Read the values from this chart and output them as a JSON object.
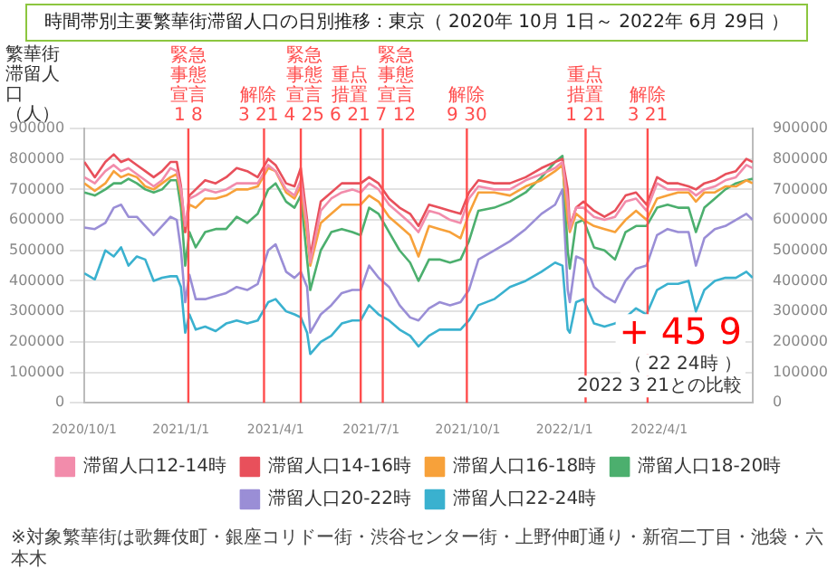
{
  "chart_data": {
    "type": "line",
    "title": "時間帯別主要繁華街滞留人口の日別推移：東京（ 2020年 10月 1日～ 2022年 6月 29日 ）",
    "ylabel": "繁華街滞留人口（人）",
    "x": [
      "2020-10-01",
      "2020-10-11",
      "2020-10-21",
      "2020-10-29",
      "2020-11-05",
      "2020-11-12",
      "2020-11-20",
      "2020-11-28",
      "2020-12-06",
      "2020-12-14",
      "2020-12-22",
      "2020-12-28",
      "2021-01-01",
      "2021-01-05",
      "2021-01-09",
      "2021-01-15",
      "2021-01-24",
      "2021-02-03",
      "2021-02-13",
      "2021-02-23",
      "2021-03-05",
      "2021-03-15",
      "2021-03-25",
      "2021-04-01",
      "2021-04-11",
      "2021-04-19",
      "2021-04-25",
      "2021-05-01",
      "2021-05-04",
      "2021-05-14",
      "2021-05-24",
      "2021-06-03",
      "2021-06-13",
      "2021-06-21",
      "2021-06-29",
      "2021-07-08",
      "2021-07-18",
      "2021-07-28",
      "2021-08-07",
      "2021-08-15",
      "2021-08-25",
      "2021-09-04",
      "2021-09-14",
      "2021-09-24",
      "2021-10-02",
      "2021-10-11",
      "2021-10-26",
      "2021-11-10",
      "2021-11-25",
      "2021-12-10",
      "2021-12-23",
      "2021-12-30",
      "2022-01-04",
      "2022-01-06",
      "2022-01-12",
      "2022-01-19",
      "2022-01-29",
      "2022-02-08",
      "2022-02-18",
      "2022-02-28",
      "2022-03-10",
      "2022-03-20",
      "2022-03-30",
      "2022-04-09",
      "2022-04-19",
      "2022-04-29",
      "2022-05-06",
      "2022-05-14",
      "2022-05-24",
      "2022-06-03",
      "2022-06-13",
      "2022-06-23",
      "2022-06-29"
    ],
    "series": [
      {
        "name": "滞留人口12-14時",
        "color": "#f28cab",
        "values": [
          740000,
          720000,
          760000,
          780000,
          760000,
          770000,
          750000,
          730000,
          710000,
          730000,
          770000,
          760000,
          700000,
          580000,
          670000,
          680000,
          700000,
          690000,
          700000,
          720000,
          720000,
          720000,
          780000,
          760000,
          700000,
          680000,
          730000,
          580000,
          460000,
          630000,
          670000,
          690000,
          700000,
          690000,
          720000,
          700000,
          650000,
          620000,
          590000,
          560000,
          630000,
          620000,
          600000,
          590000,
          670000,
          710000,
          700000,
          700000,
          730000,
          750000,
          770000,
          790000,
          660000,
          570000,
          640000,
          640000,
          610000,
          600000,
          610000,
          660000,
          670000,
          630000,
          720000,
          700000,
          700000,
          700000,
          680000,
          700000,
          710000,
          730000,
          740000,
          780000,
          770000
        ]
      },
      {
        "name": "滞留人口14-16時",
        "color": "#e8505b",
        "values": [
          790000,
          740000,
          790000,
          815000,
          790000,
          800000,
          780000,
          760000,
          740000,
          760000,
          790000,
          790000,
          710000,
          560000,
          680000,
          700000,
          730000,
          720000,
          740000,
          770000,
          760000,
          740000,
          800000,
          780000,
          720000,
          710000,
          770000,
          600000,
          480000,
          660000,
          690000,
          720000,
          720000,
          720000,
          740000,
          720000,
          670000,
          640000,
          620000,
          580000,
          650000,
          640000,
          630000,
          620000,
          690000,
          730000,
          720000,
          720000,
          740000,
          770000,
          790000,
          800000,
          700000,
          580000,
          640000,
          660000,
          630000,
          610000,
          630000,
          680000,
          690000,
          650000,
          740000,
          720000,
          720000,
          710000,
          700000,
          720000,
          730000,
          750000,
          760000,
          800000,
          790000
        ]
      },
      {
        "name": "滞留人口16-18時",
        "color": "#f7a13a",
        "values": [
          720000,
          695000,
          720000,
          760000,
          740000,
          750000,
          740000,
          710000,
          700000,
          720000,
          740000,
          750000,
          680000,
          560000,
          650000,
          640000,
          670000,
          670000,
          680000,
          700000,
          700000,
          710000,
          770000,
          760000,
          690000,
          670000,
          710000,
          550000,
          450000,
          590000,
          620000,
          650000,
          650000,
          650000,
          680000,
          660000,
          610000,
          580000,
          550000,
          480000,
          580000,
          570000,
          560000,
          540000,
          620000,
          690000,
          690000,
          680000,
          710000,
          730000,
          760000,
          780000,
          600000,
          560000,
          620000,
          600000,
          580000,
          570000,
          560000,
          600000,
          630000,
          600000,
          670000,
          680000,
          690000,
          690000,
          660000,
          690000,
          690000,
          710000,
          710000,
          730000,
          720000
        ]
      },
      {
        "name": "滞留人口18-20時",
        "color": "#4caf6e",
        "values": [
          690000,
          680000,
          700000,
          720000,
          720000,
          735000,
          720000,
          700000,
          690000,
          700000,
          730000,
          730000,
          640000,
          450000,
          560000,
          510000,
          560000,
          570000,
          570000,
          610000,
          590000,
          620000,
          700000,
          720000,
          660000,
          640000,
          680000,
          470000,
          370000,
          500000,
          560000,
          570000,
          560000,
          550000,
          640000,
          620000,
          560000,
          500000,
          460000,
          400000,
          470000,
          470000,
          460000,
          470000,
          530000,
          630000,
          640000,
          660000,
          690000,
          740000,
          790000,
          810000,
          500000,
          440000,
          590000,
          600000,
          510000,
          500000,
          470000,
          560000,
          580000,
          580000,
          640000,
          650000,
          640000,
          640000,
          560000,
          640000,
          670000,
          700000,
          720000,
          730000,
          735000
        ]
      },
      {
        "name": "滞留人口20-22時",
        "color": "#9a8ed6",
        "values": [
          575000,
          570000,
          590000,
          640000,
          650000,
          610000,
          610000,
          580000,
          550000,
          580000,
          610000,
          600000,
          500000,
          330000,
          420000,
          340000,
          340000,
          350000,
          360000,
          380000,
          370000,
          390000,
          500000,
          520000,
          430000,
          410000,
          430000,
          380000,
          230000,
          290000,
          320000,
          360000,
          370000,
          370000,
          450000,
          410000,
          380000,
          320000,
          280000,
          270000,
          310000,
          330000,
          320000,
          330000,
          370000,
          470000,
          500000,
          530000,
          570000,
          620000,
          650000,
          700000,
          370000,
          330000,
          480000,
          470000,
          380000,
          350000,
          330000,
          400000,
          440000,
          450000,
          550000,
          570000,
          560000,
          560000,
          450000,
          540000,
          570000,
          580000,
          600000,
          620000,
          600000
        ]
      },
      {
        "name": "滞留人口22-24時",
        "color": "#3ab1cf",
        "values": [
          425000,
          405000,
          500000,
          480000,
          510000,
          450000,
          480000,
          470000,
          400000,
          410000,
          415000,
          415000,
          380000,
          230000,
          290000,
          240000,
          250000,
          235000,
          260000,
          270000,
          260000,
          270000,
          330000,
          340000,
          300000,
          290000,
          280000,
          230000,
          160000,
          200000,
          220000,
          260000,
          270000,
          270000,
          320000,
          290000,
          270000,
          240000,
          220000,
          185000,
          220000,
          240000,
          240000,
          240000,
          270000,
          320000,
          340000,
          380000,
          400000,
          430000,
          460000,
          450000,
          240000,
          230000,
          330000,
          340000,
          260000,
          250000,
          260000,
          280000,
          310000,
          290000,
          370000,
          390000,
          390000,
          400000,
          300000,
          370000,
          400000,
          410000,
          410000,
          430000,
          410000
        ]
      }
    ],
    "xlim": [
      "2020-10-01",
      "2022-06-29"
    ],
    "ylim": [
      0,
      900000
    ],
    "yticks": [
      0,
      100000,
      200000,
      300000,
      400000,
      500000,
      600000,
      700000,
      800000,
      900000
    ],
    "y2lim": [
      0,
      900000
    ],
    "y2ticks": [
      0,
      100000,
      200000,
      300000,
      400000,
      500000,
      600000,
      700000,
      800000,
      900000
    ],
    "xticks": [
      {
        "value": "2020-10-01",
        "label": "2020/10/1"
      },
      {
        "value": "2021-01-01",
        "label": "2021/1/1"
      },
      {
        "value": "2021-04-01",
        "label": "2021/4/1"
      },
      {
        "value": "2021-07-01",
        "label": "2021/7/1"
      },
      {
        "value": "2021-10-01",
        "label": "2021/10/1"
      },
      {
        "value": "2022-01-01",
        "label": "2022/1/1"
      },
      {
        "value": "2022-04-01",
        "label": "2022/4/1"
      }
    ],
    "grid": "y",
    "legend": "bottom",
    "ref_lines": [
      {
        "axis": "x",
        "value": "2021-01-08",
        "label": "緊急事態宣言\n1 8",
        "color": "#ff4d4d"
      },
      {
        "axis": "x",
        "value": "2021-03-21",
        "label": "解除\n3 21",
        "color": "#ff4d4d"
      },
      {
        "axis": "x",
        "value": "2021-04-25",
        "label": "緊急事態宣言\n4 25",
        "color": "#ff4d4d"
      },
      {
        "axis": "x",
        "value": "2021-06-21",
        "label": "重点措置\n6 21",
        "color": "#ff4d4d"
      },
      {
        "axis": "x",
        "value": "2021-07-12",
        "label": "緊急事態宣言\n7 12",
        "color": "#ff4d4d"
      },
      {
        "axis": "x",
        "value": "2021-09-30",
        "label": "解除\n9 30",
        "color": "#ff4d4d"
      },
      {
        "axis": "x",
        "value": "2022-01-21",
        "label": "重点措置\n1 21",
        "color": "#ff4d4d"
      },
      {
        "axis": "x",
        "value": "2022-03-21",
        "label": "解除\n3 21",
        "color": "#ff4d4d"
      }
    ],
    "annotations": [
      "+ 45 9",
      "（ 22 24時 ）",
      "2022 3 21との比較",
      "※対象繁華街は歌舞伎町・銀座コリドー街・渋谷センター街・上野仲町通り・新宿二丁目・池袋・六本木"
    ]
  }
}
